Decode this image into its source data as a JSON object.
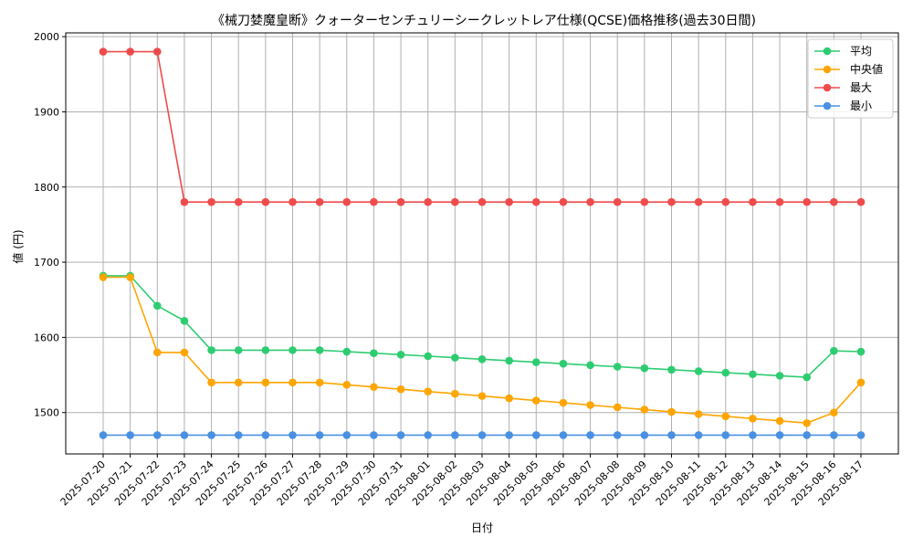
{
  "chart_data": {
    "type": "line",
    "title": "《械刀婪魔皇断》クォーターセンチュリーシークレットレア仕様(QCSE)価格推移(過去30日間)",
    "xlabel": "日付",
    "ylabel": "値 (円)",
    "ylim": [
      1445,
      2005
    ],
    "yticks": [
      1500,
      1600,
      1700,
      1800,
      1900,
      2000
    ],
    "grid": true,
    "legend_position": "top-right",
    "x": [
      "2025-07-20",
      "2025-07-21",
      "2025-07-22",
      "2025-07-23",
      "2025-07-24",
      "2025-07-25",
      "2025-07-26",
      "2025-07-27",
      "2025-07-28",
      "2025-07-29",
      "2025-07-30",
      "2025-07-31",
      "2025-08-01",
      "2025-08-02",
      "2025-08-03",
      "2025-08-04",
      "2025-08-05",
      "2025-08-06",
      "2025-08-07",
      "2025-08-08",
      "2025-08-09",
      "2025-08-10",
      "2025-08-11",
      "2025-08-12",
      "2025-08-13",
      "2025-08-14",
      "2025-08-15",
      "2025-08-16",
      "2025-08-17"
    ],
    "series": [
      {
        "name": "平均",
        "color": "#2ecc71",
        "values": [
          1682,
          1682,
          1642,
          1622,
          1583,
          1583,
          1583,
          1583,
          1583,
          1581,
          1579,
          1577,
          1575,
          1573,
          1571,
          1569,
          1567,
          1565,
          1563,
          1561,
          1559,
          1557,
          1555,
          1553,
          1551,
          1549,
          1547,
          1582,
          1581
        ]
      },
      {
        "name": "中央値",
        "color": "#ffa500",
        "values": [
          1680,
          1680,
          1580,
          1580,
          1540,
          1540,
          1540,
          1540,
          1540,
          1537,
          1534,
          1531,
          1528,
          1525,
          1522,
          1519,
          1516,
          1513,
          1510,
          1507,
          1504,
          1501,
          1498,
          1495,
          1492,
          1489,
          1486,
          1500,
          1540
        ]
      },
      {
        "name": "最大",
        "color": "#ef4b4b",
        "values": [
          1980,
          1980,
          1980,
          1780,
          1780,
          1780,
          1780,
          1780,
          1780,
          1780,
          1780,
          1780,
          1780,
          1780,
          1780,
          1780,
          1780,
          1780,
          1780,
          1780,
          1780,
          1780,
          1780,
          1780,
          1780,
          1780,
          1780,
          1780,
          1780
        ]
      },
      {
        "name": "最小",
        "color": "#4a90e2",
        "values": [
          1470,
          1470,
          1470,
          1470,
          1470,
          1470,
          1470,
          1470,
          1470,
          1470,
          1470,
          1470,
          1470,
          1470,
          1470,
          1470,
          1470,
          1470,
          1470,
          1470,
          1470,
          1470,
          1470,
          1470,
          1470,
          1470,
          1470,
          1470,
          1470
        ]
      }
    ]
  }
}
